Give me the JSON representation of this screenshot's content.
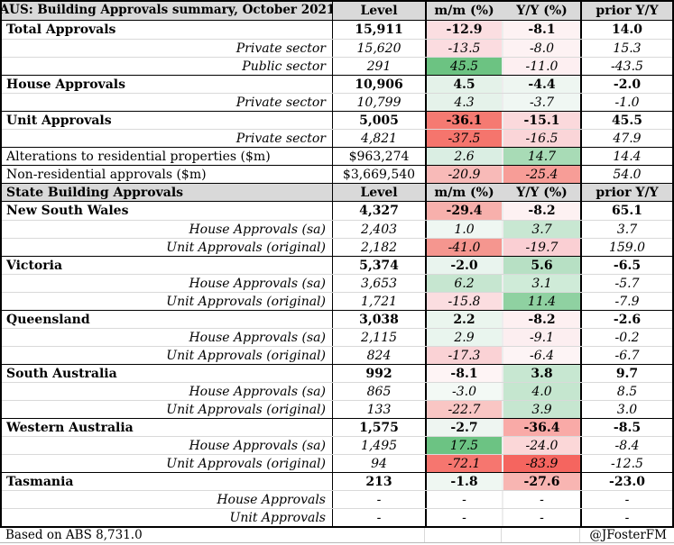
{
  "columns": [
    "Level",
    "m/m (%)",
    "Y/Y (%)",
    "prior Y/Y"
  ],
  "colors": {
    "header_bg": "#d9d9d9",
    "positive_strong": "#6cc382",
    "negative_strong": "#f5655f",
    "grid_light": "#d9d9d9",
    "border_dark": "#000000"
  },
  "chart_data": {
    "type": "table",
    "title": "AUS: Building Approvals summary, October 2021",
    "sections": [
      {
        "title": "AUS: Building Approvals summary, October 2021",
        "rows": [
          {
            "style": "main",
            "label": "Total Approvals",
            "level": "15,911",
            "mm": "-12.9",
            "yy": "-8.1",
            "prior": "14.0",
            "mm_bg": "#fbdee1",
            "yy_bg": "#fdf2f3",
            "sep": false
          },
          {
            "style": "sub",
            "label": "Private sector",
            "level": "15,620",
            "mm": "-13.5",
            "yy": "-8.0",
            "prior": "15.3",
            "mm_bg": "#fbdce0",
            "yy_bg": "#fdf2f3",
            "sep": false
          },
          {
            "style": "sub",
            "label": "Public sector",
            "level": "291",
            "mm": "45.5",
            "yy": "-11.0",
            "prior": "-43.5",
            "mm_bg": "#6cc382",
            "yy_bg": "#fdeff1",
            "sep": false
          },
          {
            "style": "main",
            "label": "House Approvals",
            "level": "10,906",
            "mm": "4.5",
            "yy": "-4.4",
            "prior": "-2.0",
            "mm_bg": "#e4f2e9",
            "yy_bg": "#eef6f1",
            "sep": true
          },
          {
            "style": "sub",
            "label": "Private sector",
            "level": "10,799",
            "mm": "4.3",
            "yy": "-3.7",
            "prior": "-1.0",
            "mm_bg": "#e5f2ea",
            "yy_bg": "#f0f7f3",
            "sep": false
          },
          {
            "style": "main",
            "label": "Unit Approvals",
            "level": "5,005",
            "mm": "-36.1",
            "yy": "-15.1",
            "prior": "45.5",
            "mm_bg": "#f57a72",
            "yy_bg": "#fbd9dc",
            "sep": true
          },
          {
            "style": "sub",
            "label": "Private sector",
            "level": "4,821",
            "mm": "-37.5",
            "yy": "-16.5",
            "prior": "47.9",
            "mm_bg": "#f5756d",
            "yy_bg": "#fad5d8",
            "sep": false
          },
          {
            "style": "plain",
            "label": "Alterations to residential properties ($m)",
            "level": "$963,274",
            "mm": "2.6",
            "yy": "14.7",
            "prior": "14.4",
            "mm_bg": "#daeee3",
            "yy_bg": "#a8dbb6",
            "sep": true
          },
          {
            "style": "plain",
            "label": "Non-residential approvals ($m)",
            "level": "$3,669,540",
            "mm": "-20.9",
            "yy": "-25.4",
            "prior": "54.0",
            "mm_bg": "#f8bab8",
            "yy_bg": "#f79d97",
            "sep": true
          }
        ]
      },
      {
        "title": "State Building Approvals",
        "rows": [
          {
            "style": "main",
            "label": "New South Wales",
            "level": "4,327",
            "mm": "-29.4",
            "yy": "-8.2",
            "prior": "65.1",
            "mm_bg": "#f7b0ac",
            "yy_bg": "#fdf1f2",
            "sep": false
          },
          {
            "style": "sub",
            "label": "House Approvals (sa)",
            "level": "2,403",
            "mm": "1.0",
            "yy": "3.7",
            "prior": "3.7",
            "mm_bg": "#eff7f2",
            "yy_bg": "#c8e7d2",
            "sep": false
          },
          {
            "style": "sub",
            "label": "Unit Approvals (original)",
            "level": "2,182",
            "mm": "-41.0",
            "yy": "-19.7",
            "prior": "159.0",
            "mm_bg": "#f5968f",
            "yy_bg": "#facfd3",
            "sep": false
          },
          {
            "style": "main",
            "label": "Victoria",
            "level": "5,374",
            "mm": "-2.0",
            "yy": "5.6",
            "prior": "-6.5",
            "mm_bg": "#e9f4ee",
            "yy_bg": "#b7e0c4",
            "sep": true
          },
          {
            "style": "sub",
            "label": "House Approvals (sa)",
            "level": "3,653",
            "mm": "6.2",
            "yy": "3.1",
            "prior": "-5.7",
            "mm_bg": "#c6e6d0",
            "yy_bg": "#cfebd8",
            "sep": false
          },
          {
            "style": "sub",
            "label": "Unit Approvals (original)",
            "level": "1,721",
            "mm": "-15.8",
            "yy": "11.4",
            "prior": "-7.9",
            "mm_bg": "#fbdde0",
            "yy_bg": "#8fd1a1",
            "sep": false
          },
          {
            "style": "main",
            "label": "Queensland",
            "level": "3,038",
            "mm": "2.2",
            "yy": "-8.2",
            "prior": "-2.6",
            "mm_bg": "#eaf5ee",
            "yy_bg": "#fdf0f1",
            "sep": true
          },
          {
            "style": "sub",
            "label": "House Approvals (sa)",
            "level": "2,115",
            "mm": "2.9",
            "yy": "-9.1",
            "prior": "-0.2",
            "mm_bg": "#e9f5ee",
            "yy_bg": "#fceef0",
            "sep": false
          },
          {
            "style": "sub",
            "label": "Unit Approvals (original)",
            "level": "824",
            "mm": "-17.3",
            "yy": "-6.4",
            "prior": "-6.7",
            "mm_bg": "#fad2d5",
            "yy_bg": "#fdf4f5",
            "sep": false
          },
          {
            "style": "main",
            "label": "South Australia",
            "level": "992",
            "mm": "-8.1",
            "yy": "3.8",
            "prior": "9.7",
            "mm_bg": "#fef4f5",
            "yy_bg": "#c7e7d1",
            "sep": true
          },
          {
            "style": "sub",
            "label": "House Approvals (sa)",
            "level": "865",
            "mm": "-3.0",
            "yy": "4.0",
            "prior": "8.5",
            "mm_bg": "#f3f9f5",
            "yy_bg": "#c5e6cf",
            "sep": false
          },
          {
            "style": "sub",
            "label": "Unit Approvals (original)",
            "level": "133",
            "mm": "-22.7",
            "yy": "3.9",
            "prior": "3.0",
            "mm_bg": "#f9c6c4",
            "yy_bg": "#c6e6d0",
            "sep": false
          },
          {
            "style": "main",
            "label": "Western Australia",
            "level": "1,575",
            "mm": "-2.7",
            "yy": "-36.4",
            "prior": "-8.5",
            "mm_bg": "#eef5f1",
            "yy_bg": "#f9aaa7",
            "sep": true
          },
          {
            "style": "sub",
            "label": "House Approvals (sa)",
            "level": "1,495",
            "mm": "17.5",
            "yy": "-24.0",
            "prior": "-8.4",
            "mm_bg": "#6cc383",
            "yy_bg": "#fbd7d8",
            "sep": false
          },
          {
            "style": "sub",
            "label": "Unit Approvals (original)",
            "level": "94",
            "mm": "-72.1",
            "yy": "-83.9",
            "prior": "-12.5",
            "mm_bg": "#f6766f",
            "yy_bg": "#f5655f",
            "sep": false
          },
          {
            "style": "main",
            "label": "Tasmania",
            "level": "213",
            "mm": "-1.8",
            "yy": "-27.6",
            "prior": "-23.0",
            "mm_bg": "#eff7f2",
            "yy_bg": "#f8b5b2",
            "sep": true
          },
          {
            "style": "sub",
            "label": "House Approvals",
            "level": "-",
            "mm": "-",
            "yy": "-",
            "prior": "-",
            "mm_bg": null,
            "yy_bg": null,
            "sep": false
          },
          {
            "style": "sub",
            "label": "Unit Approvals",
            "level": "-",
            "mm": "-",
            "yy": "-",
            "prior": "-",
            "mm_bg": null,
            "yy_bg": null,
            "sep": false
          }
        ]
      }
    ]
  },
  "footer": {
    "left": "Based on ABS 8,731.0",
    "right": "@JFosterFM"
  }
}
